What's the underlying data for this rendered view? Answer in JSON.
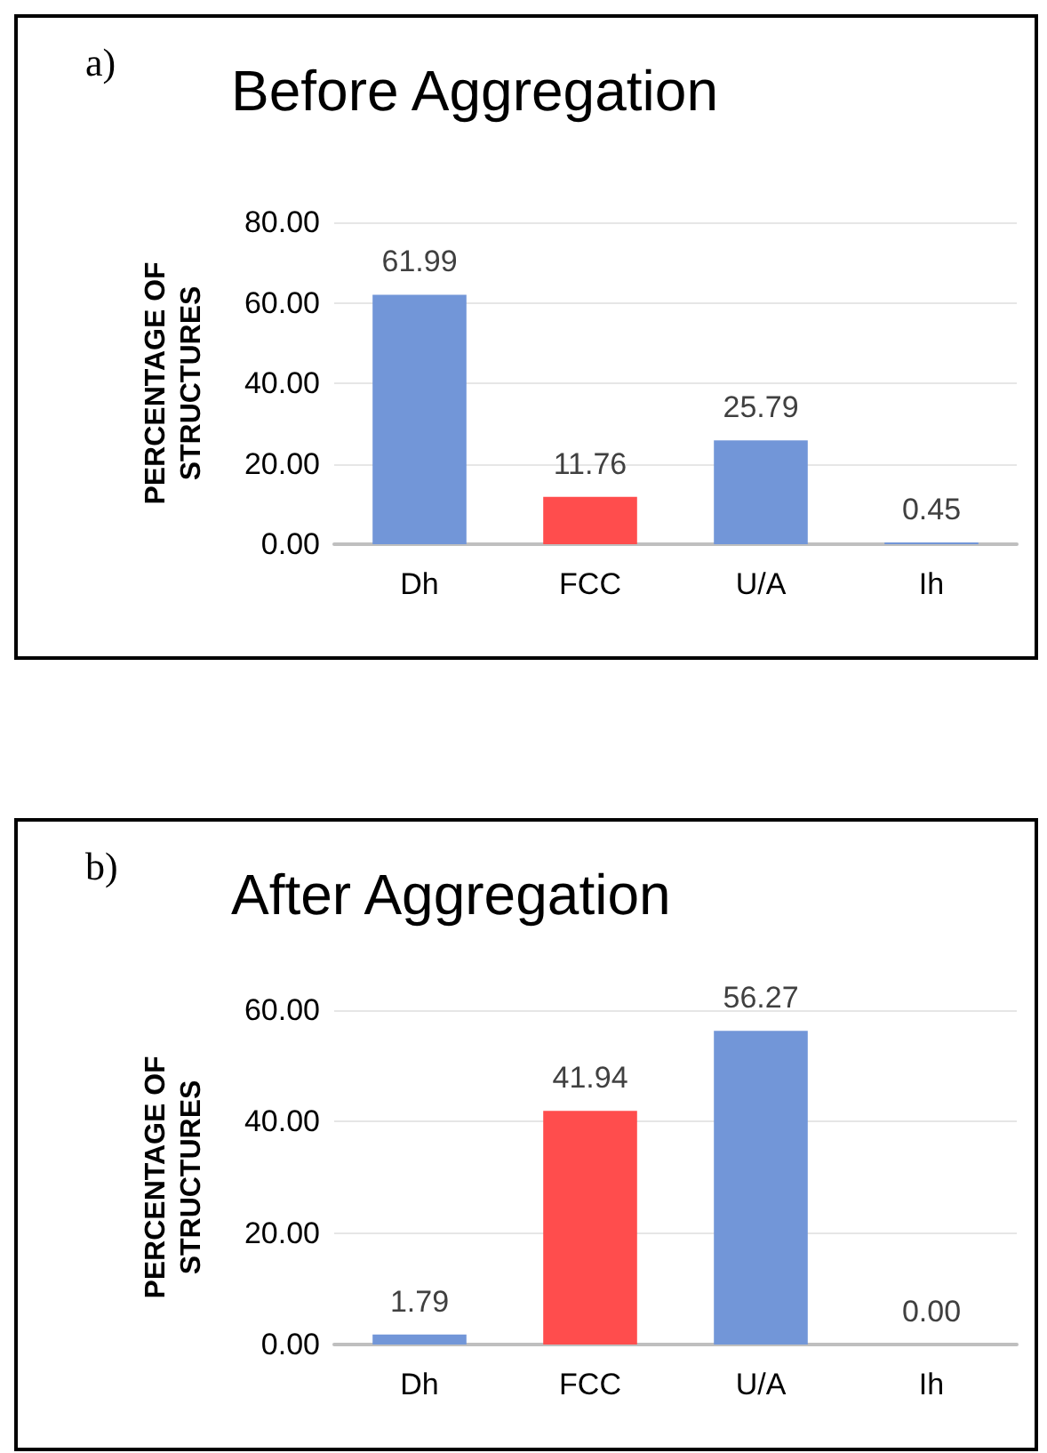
{
  "chart_data": [
    {
      "type": "bar",
      "title": "Before Aggregation",
      "ylabel": "PERCENTAGE OF\nSTRUCTURES",
      "annotations": [
        "a)"
      ],
      "categories": [
        "Dh",
        "FCC",
        "U/A",
        "Ih"
      ],
      "values": [
        61.99,
        11.76,
        25.79,
        0.45
      ],
      "colors": [
        "#7296d8",
        "#ff4d4d",
        "#7296d8",
        "#7296d8"
      ],
      "value_labels": [
        "61.99",
        "11.76",
        "25.79",
        "0.45"
      ],
      "ylim": [
        0,
        80
      ],
      "yticks": [
        {
          "value": 0,
          "label": "0.00"
        },
        {
          "value": 20,
          "label": "20.00"
        },
        {
          "value": 40,
          "label": "40.00"
        },
        {
          "value": 60,
          "label": "60.00"
        },
        {
          "value": 80,
          "label": "80.00"
        }
      ],
      "grid": "y"
    },
    {
      "type": "bar",
      "title": "After Aggregation",
      "ylabel": "PERCENTAGE OF\nSTRUCTURES",
      "annotations": [
        "b)"
      ],
      "categories": [
        "Dh",
        "FCC",
        "U/A",
        "Ih"
      ],
      "values": [
        1.79,
        41.94,
        56.27,
        0
      ],
      "colors": [
        "#7296d8",
        "#ff4d4d",
        "#7296d8",
        "#7296d8"
      ],
      "value_labels": [
        "1.79",
        "41.94",
        "56.27",
        "0.00"
      ],
      "ylim": [
        0,
        60
      ],
      "yticks": [
        {
          "value": 0,
          "label": "0.00"
        },
        {
          "value": 20,
          "label": "20.00"
        },
        {
          "value": 40,
          "label": "40.00"
        },
        {
          "value": 60,
          "label": "60.00"
        }
      ],
      "grid": "y"
    }
  ]
}
